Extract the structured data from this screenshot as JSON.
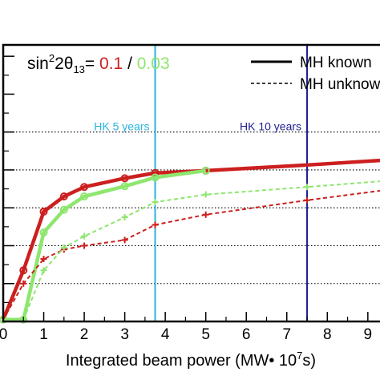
{
  "chart_data": {
    "type": "line",
    "title": "",
    "xlabel": "Integrated beam power (MW• 10",
    "xlabel_sup": "7",
    "xlabel_tail": "s)",
    "ylabel": "",
    "xlim": [
      0,
      9.3
    ],
    "ylim": [
      0,
      0.73
    ],
    "x_ticks": [
      0,
      1,
      2,
      3,
      4,
      5,
      6,
      7,
      8,
      9
    ],
    "y_major_ticks": [
      0,
      0.1,
      0.2,
      0.3,
      0.4,
      0.5,
      0.6,
      0.7
    ],
    "dotted_gridlines_y": [
      0.1,
      0.2,
      0.3,
      0.4,
      0.5
    ],
    "grid": false,
    "legend": {
      "placement": "top-right",
      "items": [
        {
          "label": "MH known",
          "style": "solid"
        },
        {
          "label": "MH unknow",
          "style": "dashed"
        }
      ]
    },
    "param_label": {
      "prefix": "sin",
      "sup1": "2",
      "mid": "2θ",
      "sub": "13",
      "eq": "= ",
      "v1": "0.1",
      "slash": " / ",
      "v2": "0.03",
      "v1_color": "#cc1f1f",
      "v2_color": "#8ee66e"
    },
    "vlines": [
      {
        "x": 3.75,
        "label": "HK 5 years",
        "color": "#29b3dd",
        "label_pos": "left"
      },
      {
        "x": 7.5,
        "label": "HK 10 years",
        "color": "#1e1e96",
        "label_pos": "left"
      }
    ],
    "series": [
      {
        "color": "#cc1f1f",
        "style": "solid",
        "marker": "circle",
        "x": [
          0,
          0.5,
          1,
          1.5,
          2,
          3,
          3.75,
          5,
          7.5,
          9.3
        ],
        "y": [
          0.005,
          0.135,
          0.29,
          0.33,
          0.355,
          0.378,
          0.392,
          0.398,
          0.413,
          0.425
        ],
        "marker_x": [
          0,
          0.5,
          1,
          1.5,
          2,
          3,
          3.75,
          5
        ]
      },
      {
        "color": "#8ee66e",
        "style": "solid",
        "marker": "circle",
        "x": [
          0,
          0.5,
          1,
          1.5,
          2,
          3,
          3.75,
          5
        ],
        "y": [
          0.005,
          0.005,
          0.235,
          0.295,
          0.33,
          0.357,
          0.38,
          0.398
        ],
        "marker_x": [
          0,
          0.5,
          1,
          1.5,
          2,
          3,
          3.75,
          5
        ]
      },
      {
        "color": "#cc1f1f",
        "style": "dashed",
        "marker": "cross",
        "x": [
          0,
          0.5,
          1,
          1.5,
          2,
          3,
          3.75,
          5,
          7.5,
          9.3
        ],
        "y": [
          0.005,
          0.1,
          0.165,
          0.19,
          0.2,
          0.215,
          0.255,
          0.282,
          0.32,
          0.345
        ],
        "marker_x": [
          0.5,
          1,
          1.5,
          2,
          3,
          3.75,
          5,
          7.5
        ]
      },
      {
        "color": "#8ee66e",
        "style": "dashed",
        "marker": "cross",
        "x": [
          0,
          0.5,
          1,
          1.5,
          2,
          3,
          3.75,
          5,
          7.5,
          9.3
        ],
        "y": [
          0.005,
          0.005,
          0.135,
          0.195,
          0.225,
          0.275,
          0.315,
          0.335,
          0.355,
          0.37
        ],
        "marker_x": [
          0.5,
          1,
          1.5,
          2,
          3,
          3.75,
          5,
          7.5
        ]
      }
    ]
  }
}
